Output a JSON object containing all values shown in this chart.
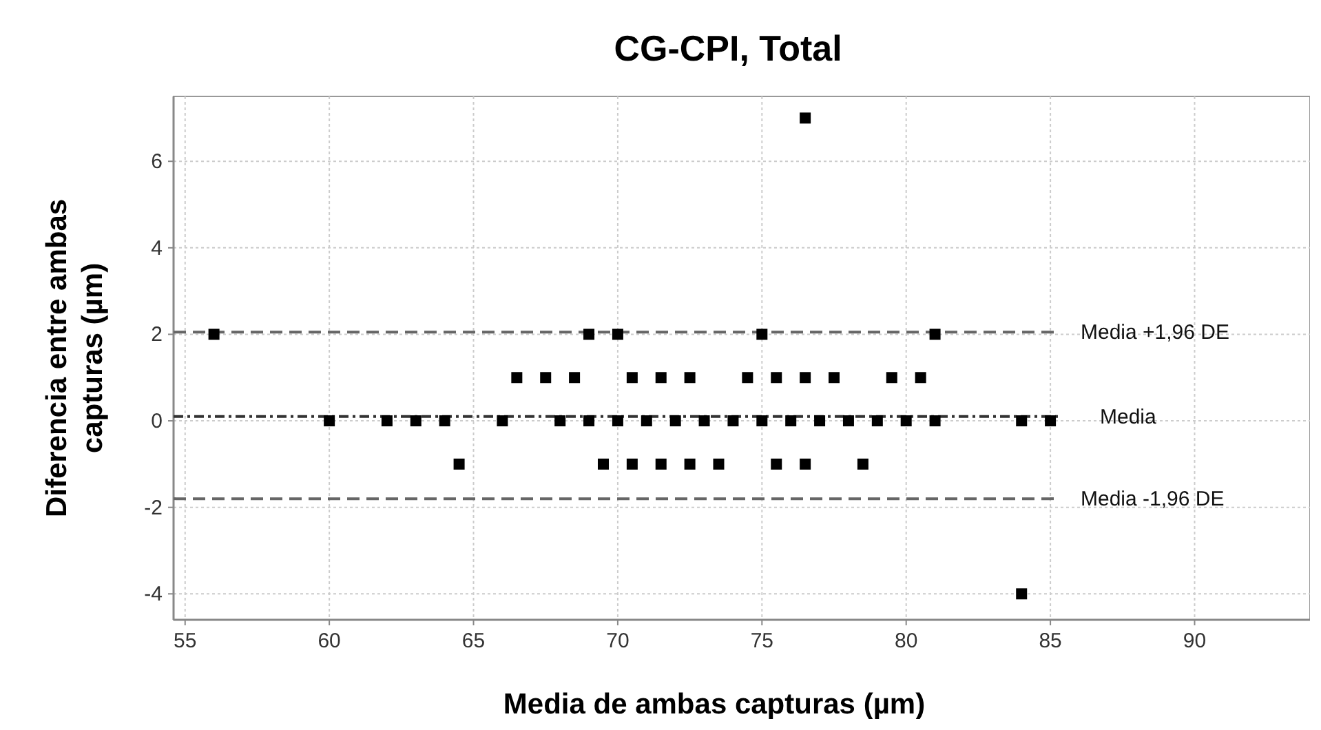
{
  "chart_data": {
    "type": "scatter",
    "title": "CG-CPI, Total",
    "xlabel": "Media de ambas capturas (µm)",
    "ylabel": "Diferencia entre ambas capturas (µm)",
    "xlim": [
      54.6,
      94
    ],
    "xticks": [
      55,
      60,
      65,
      70,
      75,
      80,
      85,
      90
    ],
    "ylim": [
      -4.6,
      7.5
    ],
    "yticks": [
      -4,
      -2,
      0,
      2,
      4,
      6
    ],
    "grid": true,
    "marker": "square",
    "series": [
      {
        "color": "#000000",
        "x": [
          56,
          69,
          70,
          75,
          81,
          66.5,
          67.5,
          68.5,
          70.5,
          71.5,
          72.5,
          74.5,
          75.5,
          76.5,
          77.5,
          79.5,
          80.5,
          60,
          62,
          63,
          64,
          66,
          68,
          69,
          70,
          71,
          72,
          73,
          74,
          75,
          76,
          77,
          78,
          79,
          80,
          81,
          84,
          85,
          64.5,
          69.5,
          70.5,
          71.5,
          72.5,
          73.5,
          75.5,
          76.5,
          78.5,
          76.5,
          84
        ],
        "values": [
          2,
          2,
          2,
          2,
          2,
          1,
          1,
          1,
          1,
          1,
          1,
          1,
          1,
          1,
          1,
          1,
          1,
          0,
          0,
          0,
          0,
          0,
          0,
          0,
          0,
          0,
          0,
          0,
          0,
          0,
          0,
          0,
          0,
          0,
          0,
          0,
          0,
          0,
          -1,
          -1,
          -1,
          -1,
          -1,
          -1,
          -1,
          -1,
          -1,
          7,
          -4
        ]
      }
    ],
    "ref_lines": [
      {
        "axis": "y",
        "value": 2.05,
        "label": "Media +1,96 DE",
        "color": "#666666",
        "line_style": "dashed"
      },
      {
        "axis": "y",
        "value": 0.1,
        "label": "Media",
        "color": "#333333",
        "line_style": "dotted"
      },
      {
        "axis": "y",
        "value": -1.8,
        "label": "Media -1,96 DE",
        "color": "#666666",
        "line_style": "dashed"
      }
    ]
  }
}
